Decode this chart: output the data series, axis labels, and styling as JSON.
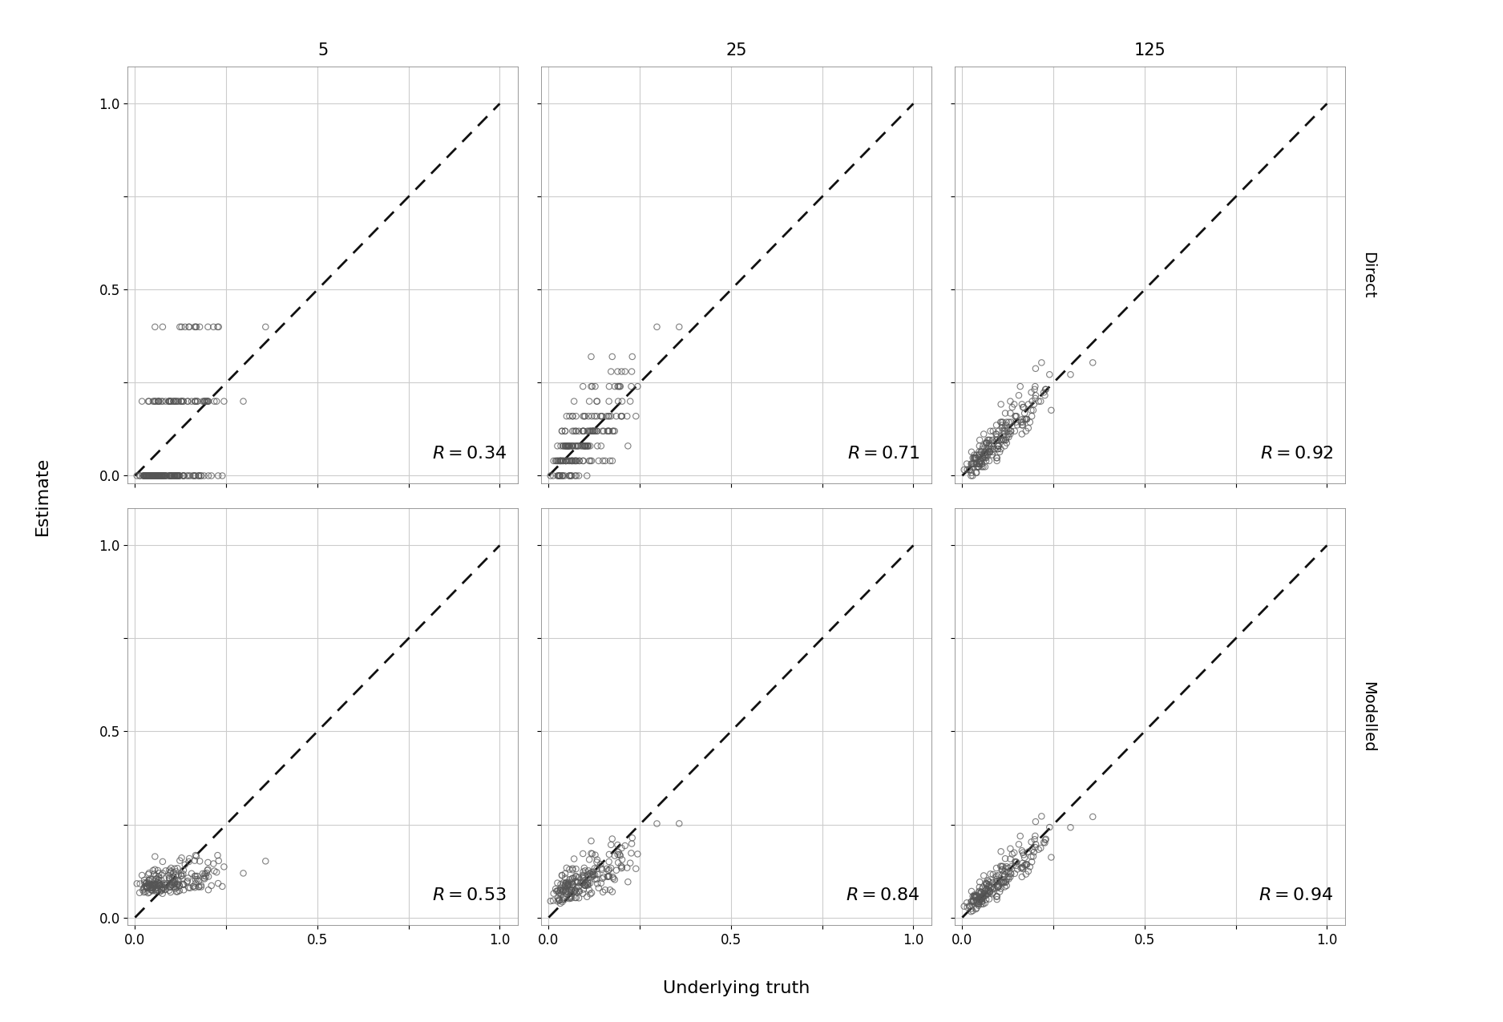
{
  "col_titles": [
    "5",
    "25",
    "125"
  ],
  "row_titles": [
    "Direct",
    "Modelled"
  ],
  "r_values": {
    "direct_5": "0.34",
    "direct_25": "0.71",
    "direct_125": "0.92",
    "modelled_5": "0.53",
    "modelled_25": "0.84",
    "modelled_125": "0.94"
  },
  "xlim": [
    -0.02,
    1.02
  ],
  "ylim": [
    -0.02,
    1.08
  ],
  "xlabel": "Underlying truth",
  "ylabel": "Estimate",
  "point_edgecolor": "#555555",
  "point_size": 28,
  "point_linewidth": 0.8,
  "point_alpha": 0.75,
  "grid_color": "#cccccc",
  "background_color": "#ffffff",
  "dashed_line_color": "#111111",
  "r_fontsize": 16,
  "axis_label_fontsize": 16,
  "tick_fontsize": 12,
  "col_title_fontsize": 15,
  "row_title_fontsize": 14
}
